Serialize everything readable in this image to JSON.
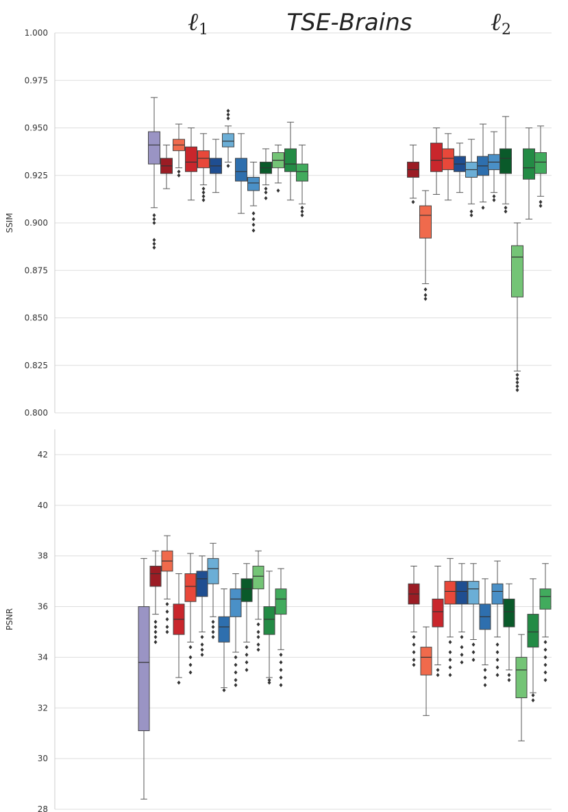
{
  "chart_data": [
    {
      "type": "box",
      "panel": "top",
      "title": "TSE-Brains",
      "group_labels": [
        {
          "main": "ℓ",
          "sub": "1"
        },
        {
          "main": "ℓ",
          "sub": "2"
        }
      ],
      "ylabel": "SSIM",
      "ylim": [
        0.8,
        1.0
      ],
      "yticks": [
        "0.800",
        "0.825",
        "0.850",
        "0.875",
        "0.900",
        "0.925",
        "0.950",
        "0.975",
        "1.000"
      ],
      "grid": true,
      "groups": [
        {
          "label": "ℓ1",
          "boxes": [
            {
              "color": "#9a94c4",
              "whislo": 0.908,
              "q1": 0.931,
              "med": 0.941,
              "q3": 0.948,
              "whishi": 0.966,
              "fliers": [
                0.904,
                0.902,
                0.9,
                0.891,
                0.889,
                0.887
              ]
            },
            {
              "color": "#9b1c24",
              "whislo": 0.918,
              "q1": 0.926,
              "med": 0.93,
              "q3": 0.934,
              "whishi": 0.941,
              "fliers": []
            },
            {
              "color": "#f06a4c",
              "whislo": 0.929,
              "q1": 0.938,
              "med": 0.941,
              "q3": 0.944,
              "whishi": 0.952,
              "fliers": [
                0.927,
                0.925
              ]
            },
            {
              "color": "#c9262c",
              "whislo": 0.912,
              "q1": 0.927,
              "med": 0.932,
              "q3": 0.94,
              "whishi": 0.95,
              "fliers": []
            },
            {
              "color": "#e8483a",
              "whislo": 0.92,
              "q1": 0.929,
              "med": 0.934,
              "q3": 0.938,
              "whishi": 0.947,
              "fliers": [
                0.918,
                0.916,
                0.914,
                0.912
              ]
            },
            {
              "color": "#1f4e91",
              "whislo": 0.916,
              "q1": 0.926,
              "med": 0.93,
              "q3": 0.934,
              "whishi": 0.944,
              "fliers": []
            },
            {
              "color": "#6baed6",
              "whislo": 0.932,
              "q1": 0.94,
              "med": 0.943,
              "q3": 0.947,
              "whishi": 0.951,
              "fliers": [
                0.93,
                0.955,
                0.957,
                0.959
              ]
            },
            {
              "color": "#2e6fae",
              "whislo": 0.905,
              "q1": 0.922,
              "med": 0.927,
              "q3": 0.934,
              "whishi": 0.947,
              "fliers": []
            },
            {
              "color": "#4a90c7",
              "whislo": 0.909,
              "q1": 0.917,
              "med": 0.921,
              "q3": 0.924,
              "whishi": 0.932,
              "fliers": [
                0.905,
                0.902,
                0.899,
                0.896
              ]
            },
            {
              "color": "#0a5a2a",
              "whislo": 0.92,
              "q1": 0.926,
              "med": 0.929,
              "q3": 0.932,
              "whishi": 0.939,
              "fliers": [
                0.918,
                0.916,
                0.913
              ]
            },
            {
              "color": "#74c476",
              "whislo": 0.921,
              "q1": 0.929,
              "med": 0.933,
              "q3": 0.937,
              "whishi": 0.941,
              "fliers": [
                0.917
              ]
            },
            {
              "color": "#238b45",
              "whislo": 0.912,
              "q1": 0.927,
              "med": 0.931,
              "q3": 0.939,
              "whishi": 0.953,
              "fliers": []
            },
            {
              "color": "#41ab5d",
              "whislo": 0.91,
              "q1": 0.922,
              "med": 0.927,
              "q3": 0.931,
              "whishi": 0.941,
              "fliers": [
                0.908,
                0.906,
                0.904
              ]
            }
          ]
        },
        {
          "label": "ℓ2",
          "boxes": [
            {
              "color": "#9b1c24",
              "whislo": 0.913,
              "q1": 0.924,
              "med": 0.928,
              "q3": 0.932,
              "whishi": 0.941,
              "fliers": [
                0.911
              ]
            },
            {
              "color": "#f06a4c",
              "whislo": 0.868,
              "q1": 0.892,
              "med": 0.904,
              "q3": 0.909,
              "whishi": 0.917,
              "fliers": [
                0.865,
                0.862,
                0.86
              ]
            },
            {
              "color": "#c9262c",
              "whislo": 0.915,
              "q1": 0.927,
              "med": 0.933,
              "q3": 0.942,
              "whishi": 0.95,
              "fliers": []
            },
            {
              "color": "#e8483a",
              "whislo": 0.912,
              "q1": 0.928,
              "med": 0.934,
              "q3": 0.939,
              "whishi": 0.947,
              "fliers": []
            },
            {
              "color": "#1f4e91",
              "whislo": 0.916,
              "q1": 0.927,
              "med": 0.931,
              "q3": 0.935,
              "whishi": 0.942,
              "fliers": []
            },
            {
              "color": "#6baed6",
              "whislo": 0.91,
              "q1": 0.924,
              "med": 0.928,
              "q3": 0.932,
              "whishi": 0.944,
              "fliers": [
                0.906,
                0.904
              ]
            },
            {
              "color": "#2e6fae",
              "whislo": 0.911,
              "q1": 0.925,
              "med": 0.93,
              "q3": 0.935,
              "whishi": 0.952,
              "fliers": [
                0.908
              ]
            },
            {
              "color": "#4a90c7",
              "whislo": 0.916,
              "q1": 0.928,
              "med": 0.932,
              "q3": 0.936,
              "whishi": 0.948,
              "fliers": [
                0.914,
                0.912
              ]
            },
            {
              "color": "#0a5a2a",
              "whislo": 0.91,
              "q1": 0.926,
              "med": 0.934,
              "q3": 0.939,
              "whishi": 0.956,
              "fliers": [
                0.908,
                0.906
              ]
            },
            {
              "color": "#74c476",
              "whislo": 0.822,
              "q1": 0.861,
              "med": 0.882,
              "q3": 0.888,
              "whishi": 0.9,
              "fliers": [
                0.82,
                0.818,
                0.816,
                0.814,
                0.812
              ]
            },
            {
              "color": "#238b45",
              "whislo": 0.902,
              "q1": 0.923,
              "med": 0.929,
              "q3": 0.939,
              "whishi": 0.95,
              "fliers": []
            },
            {
              "color": "#41ab5d",
              "whislo": 0.914,
              "q1": 0.926,
              "med": 0.932,
              "q3": 0.937,
              "whishi": 0.951,
              "fliers": [
                0.911,
                0.909
              ]
            }
          ]
        }
      ]
    },
    {
      "type": "box",
      "panel": "bottom",
      "ylabel": "PSNR",
      "ylim": [
        28,
        43
      ],
      "yticks": [
        "28",
        "30",
        "32",
        "34",
        "36",
        "38",
        "40",
        "42"
      ],
      "grid": true,
      "groups": [
        {
          "label": "ℓ1",
          "boxes": [
            {
              "color": "#9a94c4",
              "whislo": 28.4,
              "q1": 31.1,
              "med": 33.8,
              "q3": 36.0,
              "whishi": 37.9,
              "fliers": []
            },
            {
              "color": "#9b1c24",
              "whislo": 35.7,
              "q1": 36.8,
              "med": 37.3,
              "q3": 37.6,
              "whishi": 38.2,
              "fliers": [
                35.4,
                35.2,
                35.0,
                34.8,
                34.6
              ]
            },
            {
              "color": "#f06a4c",
              "whislo": 36.3,
              "q1": 37.4,
              "med": 37.8,
              "q3": 38.2,
              "whishi": 38.8,
              "fliers": [
                36.1,
                35.8,
                35.5,
                35.2,
                35.0
              ]
            },
            {
              "color": "#c9262c",
              "whislo": 33.2,
              "q1": 34.9,
              "med": 35.5,
              "q3": 36.1,
              "whishi": 37.3,
              "fliers": [
                33.0
              ]
            },
            {
              "color": "#e8483a",
              "whislo": 34.6,
              "q1": 36.2,
              "med": 36.8,
              "q3": 37.3,
              "whishi": 38.1,
              "fliers": [
                34.4,
                34.0,
                33.7,
                33.4
              ]
            },
            {
              "color": "#1f4e91",
              "whislo": 35.0,
              "q1": 36.4,
              "med": 37.1,
              "q3": 37.4,
              "whishi": 38.0,
              "fliers": [
                34.8,
                34.5,
                34.3,
                34.1
              ]
            },
            {
              "color": "#6baed6",
              "whislo": 35.6,
              "q1": 36.9,
              "med": 37.5,
              "q3": 37.9,
              "whishi": 38.5,
              "fliers": [
                35.4,
                35.2,
                35.0,
                34.8
              ]
            },
            {
              "color": "#2e6fae",
              "whislo": 32.8,
              "q1": 34.6,
              "med": 35.2,
              "q3": 35.6,
              "whishi": 36.7,
              "fliers": [
                32.7
              ]
            },
            {
              "color": "#4a90c7",
              "whislo": 34.2,
              "q1": 35.6,
              "med": 36.3,
              "q3": 36.7,
              "whishi": 37.3,
              "fliers": [
                34.0,
                33.7,
                33.4,
                33.1,
                32.9
              ]
            },
            {
              "color": "#0a5a2a",
              "whislo": 34.6,
              "q1": 36.2,
              "med": 36.7,
              "q3": 37.1,
              "whishi": 37.7,
              "fliers": [
                34.4,
                34.1,
                33.8,
                33.5
              ]
            },
            {
              "color": "#74c476",
              "whislo": 35.5,
              "q1": 36.7,
              "med": 37.2,
              "q3": 37.6,
              "whishi": 38.2,
              "fliers": [
                35.3,
                35.0,
                34.8,
                34.5,
                34.3
              ]
            },
            {
              "color": "#238b45",
              "whislo": 33.2,
              "q1": 34.9,
              "med": 35.5,
              "q3": 36.0,
              "whishi": 37.4,
              "fliers": [
                33.1,
                33.0
              ]
            },
            {
              "color": "#41ab5d",
              "whislo": 34.3,
              "q1": 35.7,
              "med": 36.3,
              "q3": 36.7,
              "whishi": 37.5,
              "fliers": [
                34.1,
                33.8,
                33.5,
                33.2,
                32.9
              ]
            }
          ]
        },
        {
          "label": "ℓ2",
          "boxes": [
            {
              "color": "#9b1c24",
              "whislo": 35.0,
              "q1": 36.1,
              "med": 36.5,
              "q3": 36.9,
              "whishi": 37.6,
              "fliers": [
                34.8,
                34.5,
                34.2,
                33.9,
                33.7
              ]
            },
            {
              "color": "#f06a4c",
              "whislo": 31.7,
              "q1": 33.3,
              "med": 34.0,
              "q3": 34.4,
              "whishi": 35.2,
              "fliers": []
            },
            {
              "color": "#c9262c",
              "whislo": 33.7,
              "q1": 35.2,
              "med": 35.8,
              "q3": 36.3,
              "whishi": 37.6,
              "fliers": [
                33.5,
                33.3
              ]
            },
            {
              "color": "#e8483a",
              "whislo": 34.8,
              "q1": 36.1,
              "med": 36.6,
              "q3": 37.0,
              "whishi": 37.9,
              "fliers": [
                34.6,
                34.2,
                33.9,
                33.6,
                33.3
              ]
            },
            {
              "color": "#1f4e91",
              "whislo": 35.0,
              "q1": 36.1,
              "med": 36.6,
              "q3": 37.0,
              "whishi": 37.7,
              "fliers": [
                34.8,
                34.4,
                34.1,
                33.8
              ]
            },
            {
              "color": "#6baed6",
              "whislo": 34.7,
              "q1": 36.1,
              "med": 36.7,
              "q3": 37.0,
              "whishi": 37.7,
              "fliers": [
                34.5,
                34.2,
                33.9
              ]
            },
            {
              "color": "#2e6fae",
              "whislo": 33.7,
              "q1": 35.1,
              "med": 35.6,
              "q3": 36.1,
              "whishi": 37.1,
              "fliers": [
                33.5,
                33.2,
                32.9
              ]
            },
            {
              "color": "#4a90c7",
              "whislo": 34.8,
              "q1": 36.1,
              "med": 36.6,
              "q3": 36.9,
              "whishi": 37.8,
              "fliers": [
                34.5,
                34.2,
                33.9,
                33.6,
                33.3
              ]
            },
            {
              "color": "#0a5a2a",
              "whislo": 33.5,
              "q1": 35.2,
              "med": 35.8,
              "q3": 36.3,
              "whishi": 36.9,
              "fliers": [
                33.3,
                33.1
              ]
            },
            {
              "color": "#74c476",
              "whislo": 30.7,
              "q1": 32.4,
              "med": 33.5,
              "q3": 34.0,
              "whishi": 34.9,
              "fliers": []
            },
            {
              "color": "#238b45",
              "whislo": 32.6,
              "q1": 34.4,
              "med": 35.0,
              "q3": 35.7,
              "whishi": 37.1,
              "fliers": [
                32.5,
                32.3
              ]
            },
            {
              "color": "#41ab5d",
              "whislo": 34.8,
              "q1": 35.9,
              "med": 36.4,
              "q3": 36.7,
              "whishi": 37.7,
              "fliers": [
                34.6,
                34.3,
                34.0,
                33.7,
                33.4,
                33.1
              ]
            }
          ]
        }
      ]
    }
  ]
}
